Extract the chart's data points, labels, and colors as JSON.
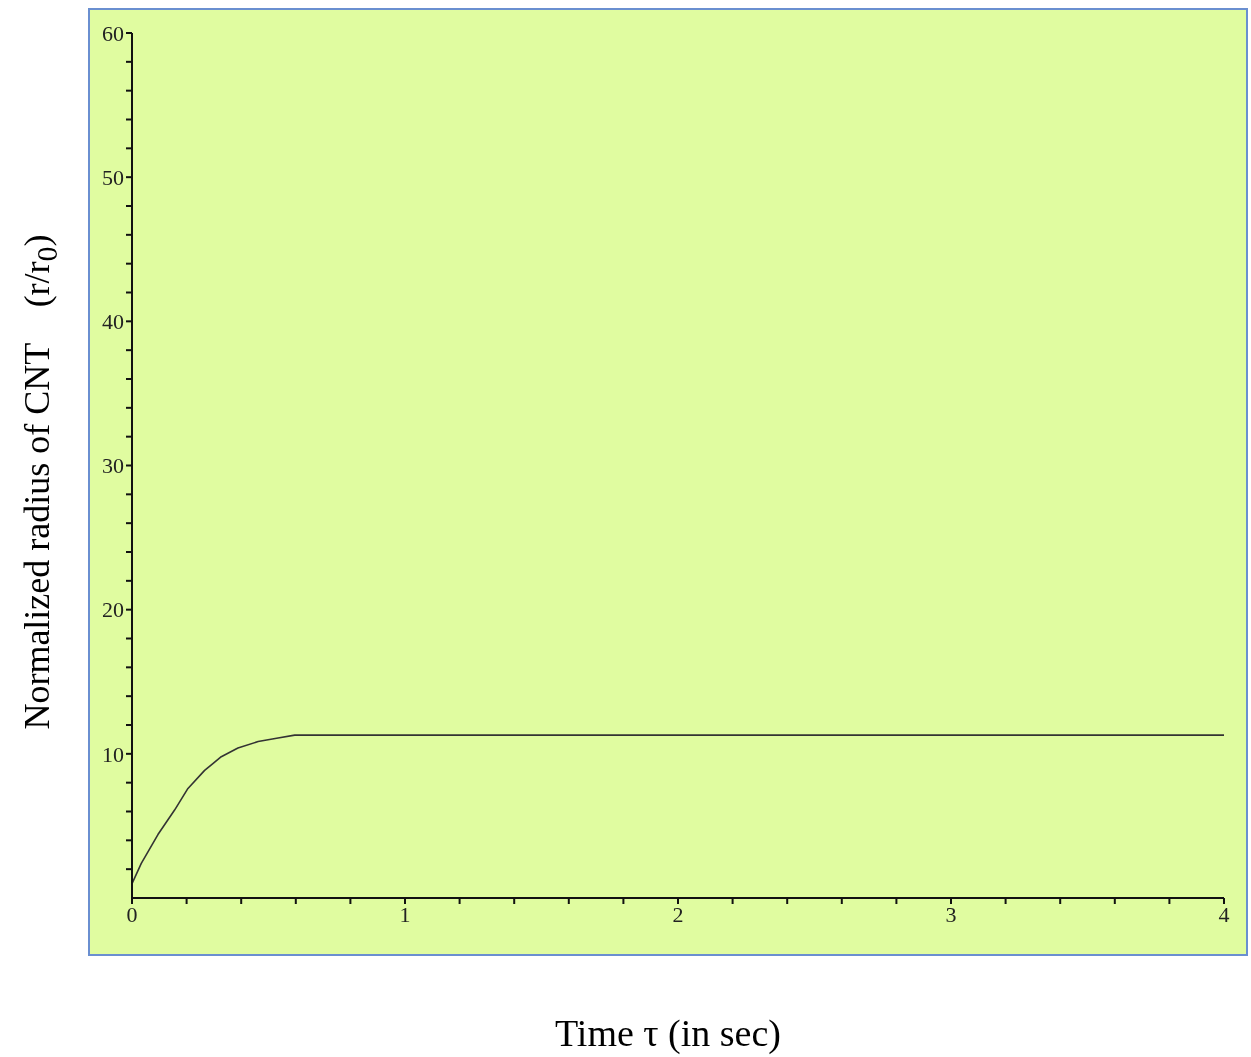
{
  "chart_data": {
    "type": "line",
    "xlabel": "Time τ (in sec)",
    "ylabel": "Normalized radius of CNT    (r/r$_{0}$)",
    "x": [
      0,
      0.034,
      0.095,
      0.156,
      0.205,
      0.266,
      0.327,
      0.388,
      0.462,
      0.535,
      0.596,
      1,
      2,
      3,
      4
    ],
    "series": [
      {
        "color": "#333333",
        "values": [
          1,
          2.4,
          4.4,
          6.1,
          7.6,
          8.85,
          9.8,
          10.4,
          10.85,
          11.1,
          11.3,
          11.3,
          11.3,
          11.3,
          11.3
        ]
      }
    ],
    "xlim": [
      0,
      4
    ],
    "ylim": [
      0,
      60
    ],
    "xticks": [
      0,
      {
        "value": 0.2,
        "label": null
      },
      {
        "value": 0.4,
        "label": null
      },
      {
        "value": 0.6,
        "label": null
      },
      {
        "value": 0.8,
        "label": null
      },
      1,
      {
        "value": 1.2,
        "label": null
      },
      {
        "value": 1.4,
        "label": null
      },
      {
        "value": 1.6,
        "label": null
      },
      {
        "value": 1.8,
        "label": null
      },
      2,
      {
        "value": 2.2,
        "label": null
      },
      {
        "value": 2.4,
        "label": null
      },
      {
        "value": 2.6,
        "label": null
      },
      {
        "value": 2.8,
        "label": null
      },
      3,
      {
        "value": 3.2,
        "label": null
      },
      {
        "value": 3.4,
        "label": null
      },
      {
        "value": 3.6,
        "label": null
      },
      {
        "value": 3.8,
        "label": null
      },
      4
    ],
    "yticks": [
      {
        "value": 2,
        "label": null
      },
      {
        "value": 4,
        "label": null
      },
      {
        "value": 6,
        "label": null
      },
      {
        "value": 8,
        "label": null
      },
      10,
      {
        "value": 12,
        "label": null
      },
      {
        "value": 14,
        "label": null
      },
      {
        "value": 16,
        "label": null
      },
      {
        "value": 18,
        "label": null
      },
      20,
      {
        "value": 22,
        "label": null
      },
      {
        "value": 24,
        "label": null
      },
      {
        "value": 26,
        "label": null
      },
      {
        "value": 28,
        "label": null
      },
      30,
      {
        "value": 32,
        "label": null
      },
      {
        "value": 34,
        "label": null
      },
      {
        "value": 36,
        "label": null
      },
      {
        "value": 38,
        "label": null
      },
      40,
      {
        "value": 42,
        "label": null
      },
      {
        "value": 44,
        "label": null
      },
      {
        "value": 46,
        "label": null
      },
      {
        "value": 48,
        "label": null
      },
      50,
      {
        "value": 52,
        "label": null
      },
      {
        "value": 54,
        "label": null
      },
      {
        "value": 56,
        "label": null
      },
      {
        "value": 58,
        "label": null
      },
      60
    ],
    "grid": false,
    "legend": false,
    "marker": "none",
    "line_style": "solid"
  }
}
